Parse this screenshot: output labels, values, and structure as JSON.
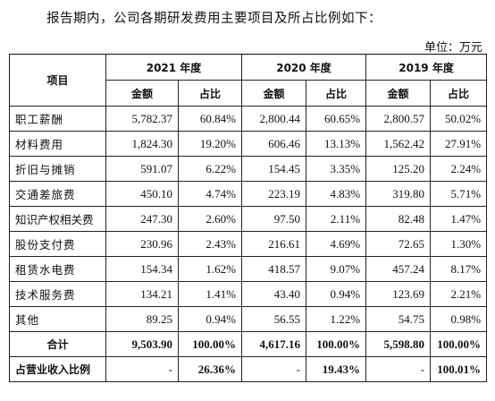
{
  "intro": "报告期内，公司各期研发费用主要项目及所占比例如下：",
  "unit": "单位：万元",
  "header": {
    "item": "项目",
    "years": [
      "2021 年度",
      "2020 年度",
      "2019 年度"
    ],
    "amount": "金额",
    "ratio": "占比"
  },
  "rows": [
    {
      "label": "职工薪酬",
      "v": [
        "5,782.37",
        "60.84%",
        "2,800.44",
        "60.65%",
        "2,800.57",
        "50.02%"
      ]
    },
    {
      "label": "材料费用",
      "v": [
        "1,824.30",
        "19.20%",
        "606.46",
        "13.13%",
        "1,562.42",
        "27.91%"
      ]
    },
    {
      "label": "折旧与摊销",
      "v": [
        "591.07",
        "6.22%",
        "154.45",
        "3.35%",
        "125.20",
        "2.24%"
      ]
    },
    {
      "label": "交通差旅费",
      "v": [
        "450.10",
        "4.74%",
        "223.19",
        "4.83%",
        "319.80",
        "5.71%"
      ]
    },
    {
      "label": "知识产权相关费",
      "v": [
        "247.30",
        "2.60%",
        "97.50",
        "2.11%",
        "82.48",
        "1.47%"
      ]
    },
    {
      "label": "股份支付费",
      "v": [
        "230.96",
        "2.43%",
        "216.61",
        "4.69%",
        "72.65",
        "1.30%"
      ]
    },
    {
      "label": "租赁水电费",
      "v": [
        "154.34",
        "1.62%",
        "418.57",
        "9.07%",
        "457.24",
        "8.17%"
      ]
    },
    {
      "label": "技术服务费",
      "v": [
        "134.21",
        "1.41%",
        "43.40",
        "0.94%",
        "123.69",
        "2.21%"
      ]
    },
    {
      "label": "其他",
      "v": [
        "89.25",
        "0.94%",
        "56.55",
        "1.22%",
        "54.75",
        "0.98%"
      ]
    }
  ],
  "total": {
    "label": "合计",
    "v": [
      "9,503.90",
      "100.00%",
      "4,617.16",
      "100.00%",
      "5,598.80",
      "100.00%"
    ]
  },
  "revenue_ratio": {
    "label": "占营业收入比例",
    "v": [
      "-",
      "26.36%",
      "-",
      "19.43%",
      "-",
      "100.01%"
    ]
  }
}
